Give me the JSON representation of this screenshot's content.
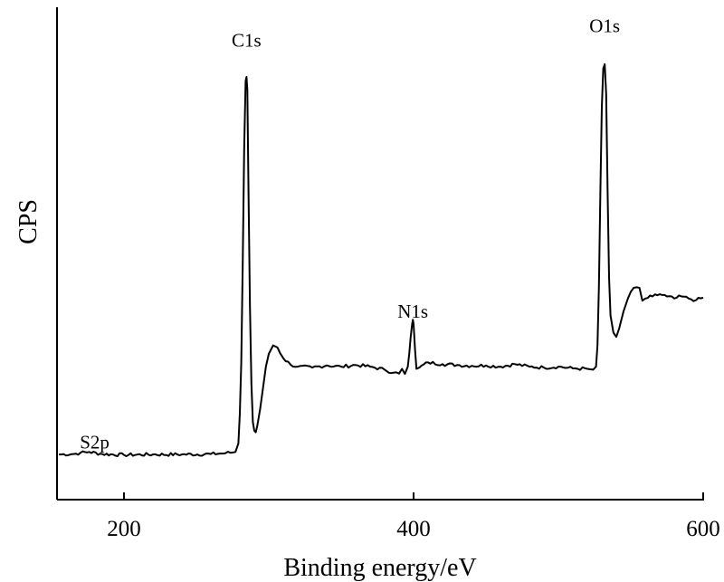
{
  "chart_data": {
    "type": "line",
    "title": "",
    "xlabel": "Binding energy/eV",
    "ylabel": "CPS",
    "xlim": [
      155,
      600
    ],
    "ylim": [
      0,
      100
    ],
    "x_ticks": [
      200,
      400,
      600
    ],
    "y_ticks": [],
    "grid": false,
    "legend": "none",
    "line_color": "#000000",
    "annotations": [
      {
        "text": "S2p",
        "x": 176,
        "y": 0.5
      },
      {
        "text": "C1s",
        "x": 284.6,
        "y": 94
      },
      {
        "text": "N1s",
        "x": 399.5,
        "y": 30
      },
      {
        "text": "O1s",
        "x": 532,
        "y": 97
      }
    ],
    "series": [
      {
        "values": [
          [
            155,
            0.4
          ],
          [
            165,
            0.5
          ],
          [
            170,
            0.8
          ],
          [
            176,
            1.0
          ],
          [
            185,
            0.5
          ],
          [
            200,
            0.3
          ],
          [
            220,
            0.4
          ],
          [
            240,
            0.4
          ],
          [
            260,
            0.5
          ],
          [
            270,
            0.7
          ],
          [
            277,
            1.0
          ],
          [
            279,
            3
          ],
          [
            280,
            10
          ],
          [
            281,
            22
          ],
          [
            282,
            45
          ],
          [
            283,
            72
          ],
          [
            284,
            88
          ],
          [
            284.6,
            89
          ],
          [
            285.2,
            86
          ],
          [
            286,
            62
          ],
          [
            287,
            35
          ],
          [
            288,
            17
          ],
          [
            289,
            8
          ],
          [
            290,
            6
          ],
          [
            291,
            5.6
          ],
          [
            292,
            7
          ],
          [
            294,
            11
          ],
          [
            296,
            16
          ],
          [
            298,
            21
          ],
          [
            300,
            24
          ],
          [
            303,
            26
          ],
          [
            306,
            25.5
          ],
          [
            310,
            23
          ],
          [
            315,
            21.5
          ],
          [
            320,
            21
          ],
          [
            330,
            20.8
          ],
          [
            340,
            21.3
          ],
          [
            350,
            21
          ],
          [
            360,
            21.4
          ],
          [
            370,
            21
          ],
          [
            380,
            20.3
          ],
          [
            386,
            19.6
          ],
          [
            390,
            19.4
          ],
          [
            392,
            20.5
          ],
          [
            394,
            19.3
          ],
          [
            396,
            21
          ],
          [
            397,
            24
          ],
          [
            398,
            28
          ],
          [
            399,
            31
          ],
          [
            399.5,
            32
          ],
          [
            400,
            31
          ],
          [
            401,
            25
          ],
          [
            402,
            20.5
          ],
          [
            404,
            20.8
          ],
          [
            410,
            22
          ],
          [
            420,
            21.6
          ],
          [
            430,
            21.4
          ],
          [
            440,
            21.2
          ],
          [
            450,
            21.3
          ],
          [
            460,
            21
          ],
          [
            470,
            21.6
          ],
          [
            480,
            21
          ],
          [
            490,
            20.8
          ],
          [
            500,
            21
          ],
          [
            510,
            20.6
          ],
          [
            520,
            20.5
          ],
          [
            524,
            20.3
          ],
          [
            526,
            21
          ],
          [
            527,
            26
          ],
          [
            528,
            40
          ],
          [
            529,
            62
          ],
          [
            530,
            82
          ],
          [
            531,
            91
          ],
          [
            532,
            92
          ],
          [
            533,
            85
          ],
          [
            534,
            62
          ],
          [
            535,
            42
          ],
          [
            536,
            33
          ],
          [
            538,
            29
          ],
          [
            540,
            28
          ],
          [
            542,
            30
          ],
          [
            545,
            34
          ],
          [
            548,
            37
          ],
          [
            552,
            39.5
          ],
          [
            556,
            39.5
          ],
          [
            558,
            36.5
          ],
          [
            560,
            37
          ],
          [
            565,
            37.5
          ],
          [
            570,
            38
          ],
          [
            575,
            37.5
          ],
          [
            580,
            37
          ],
          [
            585,
            37.5
          ],
          [
            590,
            37
          ],
          [
            595,
            36.6
          ],
          [
            600,
            37.2
          ]
        ]
      }
    ]
  }
}
